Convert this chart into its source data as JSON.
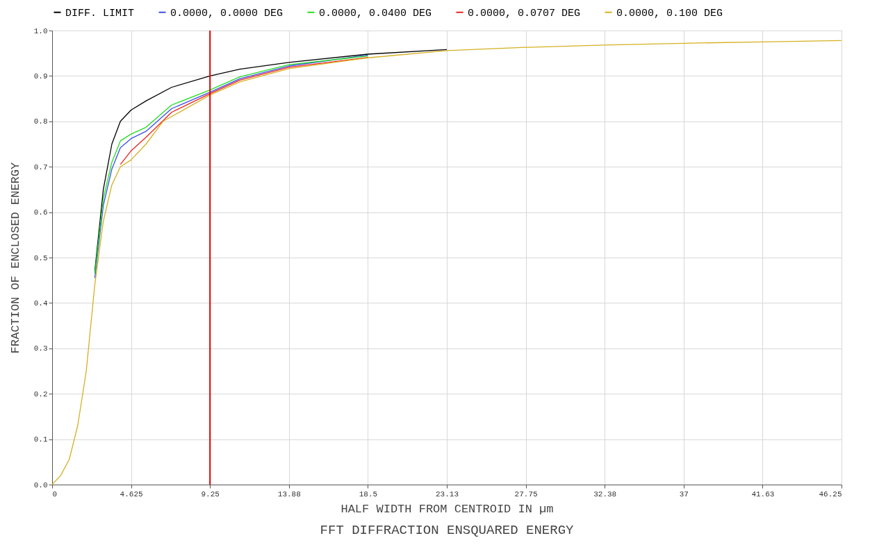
{
  "chart_data": {
    "type": "line",
    "title": "FFT DIFFRACTION ENSQUARED ENERGY",
    "xlabel": "HALF WIDTH FROM CENTROID IN µm",
    "ylabel": "FRACTION OF ENCLOSED ENERGY",
    "xlim": [
      0,
      46.25
    ],
    "ylim": [
      0,
      1.0
    ],
    "xticks": [
      0,
      4.625,
      9.25,
      {
        "value": 13.875,
        "label": "13.88"
      },
      18.5,
      {
        "value": 23.125,
        "label": "23.13"
      },
      27.75,
      {
        "value": 32.375,
        "label": "32.38"
      },
      37,
      {
        "value": 41.625,
        "label": "41.63"
      },
      46.25
    ],
    "yticks": [
      {
        "value": 0,
        "label": "0.0"
      },
      0.1,
      0.2,
      0.3,
      0.4,
      0.5,
      0.6,
      0.7,
      0.8,
      0.9,
      {
        "value": 1,
        "label": "1.0"
      }
    ],
    "grid": true,
    "legend": "top",
    "ref_lines": [
      {
        "axis": "x",
        "value": 9.25,
        "color": "#dd0000"
      }
    ],
    "series": [
      {
        "name": "DIFF. LIMIT",
        "color": "#000000",
        "x": [
          2.5,
          3,
          3.5,
          4,
          4.625,
          5.5,
          7,
          9.25,
          11,
          13.875,
          18.5,
          23.125
        ],
        "values": [
          0.47,
          0.65,
          0.75,
          0.8,
          0.825,
          0.845,
          0.875,
          0.9,
          0.915,
          0.93,
          0.948,
          0.958
        ]
      },
      {
        "name": "0.0000, 0.0000 DEG",
        "color": "#3a4ee8",
        "x": [
          2.5,
          3,
          3.5,
          4,
          4.625,
          5.5,
          7,
          9.25,
          11,
          13.875,
          18.5
        ],
        "values": [
          0.455,
          0.615,
          0.695,
          0.742,
          0.762,
          0.778,
          0.828,
          0.864,
          0.894,
          0.922,
          0.946
        ]
      },
      {
        "name": "0.0000, 0.0400 DEG",
        "color": "#22dd22",
        "x": [
          2.5,
          3,
          3.5,
          4,
          4.625,
          5.5,
          7,
          9.25,
          11,
          13.875,
          18.5
        ],
        "values": [
          0.465,
          0.63,
          0.71,
          0.757,
          0.772,
          0.787,
          0.836,
          0.869,
          0.898,
          0.925,
          0.944
        ]
      },
      {
        "name": "0.0000, 0.0707 DEG",
        "color": "#ee2020",
        "x": [
          4,
          4.625,
          5.5,
          7,
          9.25,
          11,
          13.875,
          18.5
        ],
        "values": [
          0.705,
          0.735,
          0.765,
          0.82,
          0.861,
          0.891,
          0.919,
          0.941
        ]
      },
      {
        "name": "0.0000, 0.100 DEG",
        "color": "#d4b020",
        "x": [
          0,
          0.5,
          1,
          1.5,
          2,
          2.5,
          3,
          3.5,
          4,
          4.625,
          5.5,
          6.5,
          9.25,
          11,
          13.875,
          18.5,
          23.125,
          27.75,
          32.375,
          37,
          41.625,
          46.25
        ],
        "values": [
          0,
          0.02,
          0.055,
          0.13,
          0.25,
          0.44,
          0.58,
          0.66,
          0.7,
          0.715,
          0.75,
          0.8,
          0.858,
          0.887,
          0.916,
          0.94,
          0.956,
          0.963,
          0.968,
          0.972,
          0.975,
          0.978
        ]
      }
    ]
  }
}
